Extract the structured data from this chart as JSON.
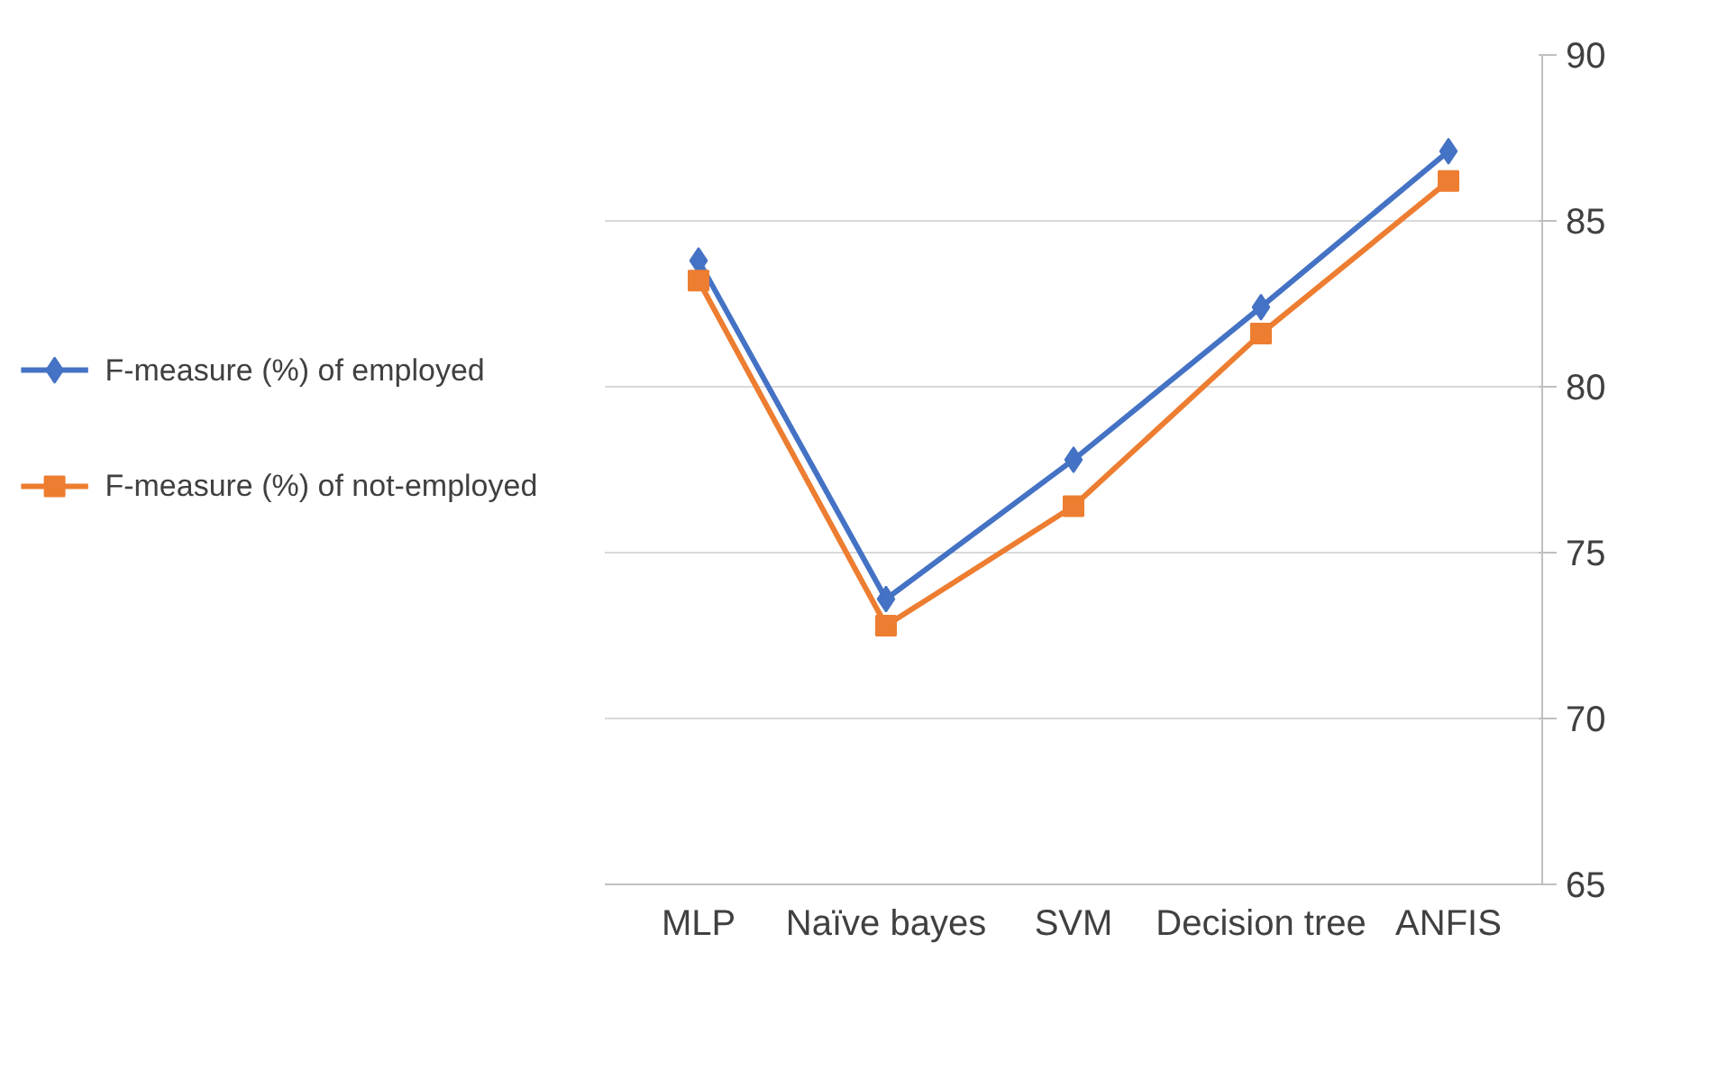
{
  "chart_data": {
    "type": "line",
    "categories": [
      "MLP",
      "Naïve bayes",
      "SVM",
      "Decision tree",
      "ANFIS"
    ],
    "series": [
      {
        "name": "F-measure (%) of employed",
        "color": "#4472c4",
        "marker": "diamond",
        "values": [
          83.8,
          73.6,
          77.8,
          82.4,
          87.1
        ]
      },
      {
        "name": "F-measure (%) of not-employed",
        "color": "#ed7d31",
        "marker": "square",
        "values": [
          83.2,
          72.8,
          76.4,
          81.6,
          86.2
        ]
      }
    ],
    "ylim": [
      65,
      90
    ],
    "yticks": [
      65,
      70,
      75,
      80,
      85,
      90
    ],
    "grid": "y",
    "legend": "left",
    "line_style": "solid"
  }
}
